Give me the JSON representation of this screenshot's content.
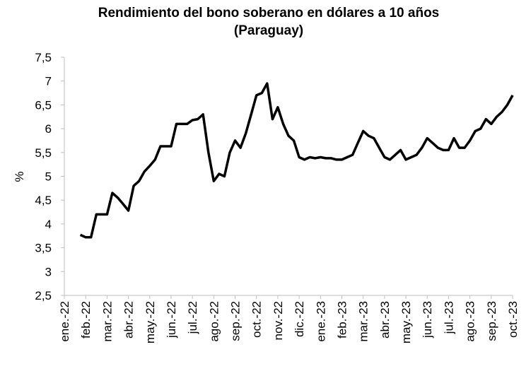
{
  "chart_data": {
    "type": "line",
    "title": "Rendimiento del bono soberano en dólares a 10 años",
    "subtitle": "(Paraguay)",
    "y_label": "%",
    "categories": [
      "ene.-22",
      null,
      null,
      null,
      "feb.-22",
      null,
      null,
      null,
      "mar.-22",
      null,
      null,
      null,
      "abr.-22",
      null,
      null,
      null,
      "may.-22",
      null,
      null,
      null,
      "jun.-22",
      null,
      null,
      null,
      "jul.-22",
      null,
      null,
      null,
      "ago.-22",
      null,
      null,
      null,
      "sep.-22",
      null,
      null,
      null,
      "oct.-22",
      null,
      null,
      null,
      "nov.-22",
      null,
      null,
      null,
      "dic.-22",
      null,
      null,
      null,
      "ene.-23",
      null,
      null,
      null,
      "feb.-23",
      null,
      null,
      null,
      "mar.-23",
      null,
      null,
      null,
      "abr.-23",
      null,
      null,
      null,
      "may.-23",
      null,
      null,
      null,
      "jun.-23",
      null,
      null,
      null,
      "jul.-23",
      null,
      null,
      null,
      "ago.-23",
      null,
      null,
      null,
      "sep.-23",
      null,
      null,
      null,
      "oct.-23"
    ],
    "series": [
      {
        "name": "Paraguay",
        "color": "#000000",
        "values": [
          null,
          null,
          null,
          3.77,
          3.72,
          3.72,
          4.2,
          4.2,
          4.2,
          4.65,
          4.55,
          4.42,
          4.28,
          4.8,
          4.9,
          5.1,
          5.22,
          5.35,
          5.63,
          5.63,
          5.63,
          6.1,
          6.1,
          6.1,
          6.18,
          6.2,
          6.3,
          5.5,
          4.9,
          5.05,
          5.0,
          5.5,
          5.75,
          5.6,
          5.9,
          6.3,
          6.7,
          6.75,
          6.95,
          6.2,
          6.45,
          6.1,
          5.85,
          5.75,
          5.4,
          5.35,
          5.4,
          5.38,
          5.4,
          5.38,
          5.38,
          5.35,
          5.35,
          5.4,
          5.45,
          5.7,
          5.95,
          5.85,
          5.8,
          5.6,
          5.4,
          5.35,
          5.45,
          5.55,
          5.35,
          5.4,
          5.45,
          5.6,
          5.8,
          5.7,
          5.6,
          5.55,
          5.55,
          5.8,
          5.6,
          5.6,
          5.75,
          5.95,
          6.0,
          6.2,
          6.1,
          6.25,
          6.35,
          6.5,
          6.7
        ]
      }
    ],
    "ylim": [
      2.5,
      7.5
    ],
    "yticks": [
      {
        "value": 2.5,
        "label": "2,5"
      },
      3,
      {
        "value": 3.5,
        "label": "3,5"
      },
      4,
      {
        "value": 4.5,
        "label": "4,5"
      },
      5,
      {
        "value": 5.5,
        "label": "5,5"
      },
      6,
      {
        "value": 6.5,
        "label": "6,5"
      },
      7,
      {
        "value": 7.5,
        "label": "7,5"
      }
    ],
    "grid": false
  }
}
